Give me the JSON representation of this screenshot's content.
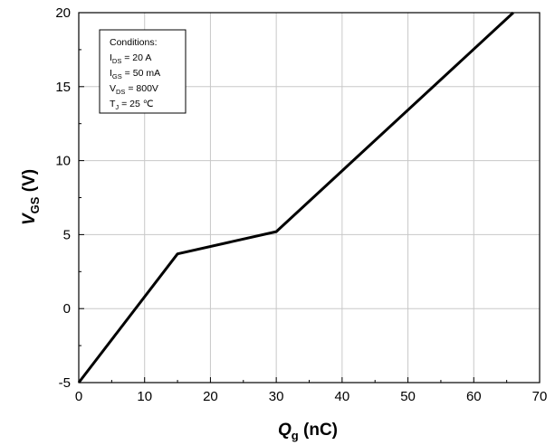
{
  "chart_data": {
    "type": "line",
    "x": [
      0,
      15,
      30,
      66
    ],
    "series": [
      {
        "values": [
          -5,
          3.7,
          5.2,
          20
        ]
      }
    ],
    "xlim": [
      0,
      70
    ],
    "ylim": [
      -5,
      20
    ],
    "xticks": [
      0,
      10,
      20,
      30,
      40,
      50,
      60,
      70
    ],
    "yticks": [
      -5,
      0,
      5,
      10,
      15,
      20
    ],
    "xticks_text": [
      "0",
      "10",
      "20",
      "30",
      "40",
      "50",
      "60",
      "70"
    ],
    "yticks_text": [
      "-5",
      "0",
      "5",
      "10",
      "15",
      "20"
    ],
    "grid": true,
    "xlabel": {
      "main": "Q",
      "sub": "g",
      "rest": " (nC)"
    },
    "ylabel": {
      "main": "V",
      "sub": "GS",
      "rest": " (V)"
    },
    "conditions": {
      "title": "Conditions:",
      "lines": [
        {
          "main": "I",
          "sub": "DS",
          "rest": " = 20 A"
        },
        {
          "main": "I",
          "sub": "GS",
          "rest": " = 50 mA"
        },
        {
          "main": "V",
          "sub": "DS",
          "rest": " = 800V"
        },
        {
          "main": "T",
          "sub": "J",
          "rest": " =  25 ℃"
        }
      ]
    },
    "colors": {
      "line": "#000000",
      "grid": "#c8c8c8",
      "axis": "#000000"
    }
  }
}
